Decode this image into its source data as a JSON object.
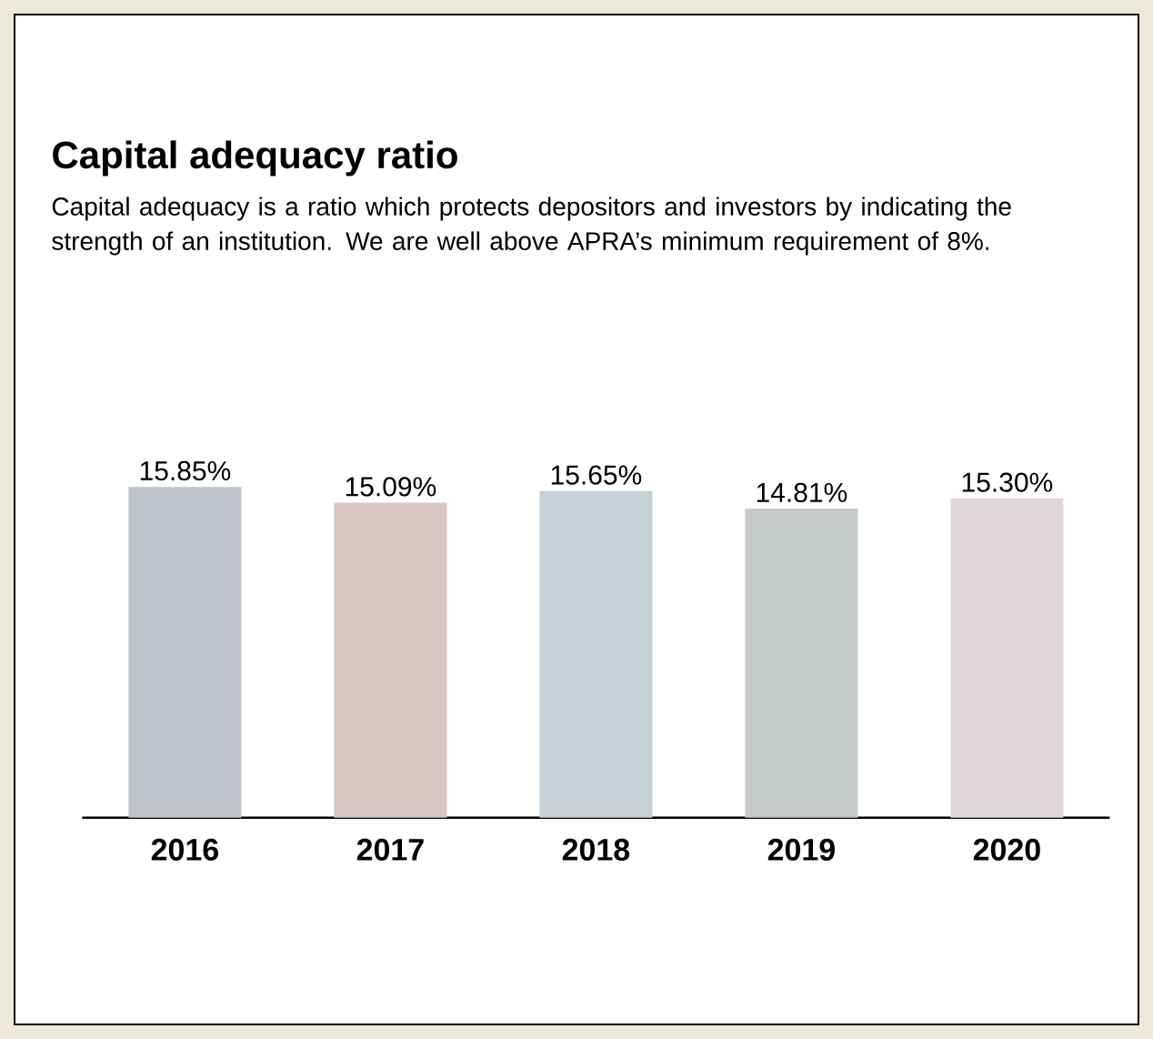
{
  "chart_data": {
    "type": "bar",
    "title": "Capital adequacy ratio",
    "subtitle": "Capital adequacy is a ratio which protects depositors and investors by indicating the strength of an institution. We are well above APRA’s minimum requirement of 8%.",
    "categories": [
      "2016",
      "2017",
      "2018",
      "2019",
      "2020"
    ],
    "values": [
      15.85,
      15.09,
      15.65,
      14.81,
      15.3
    ],
    "value_labels": [
      "15.85%",
      "15.09%",
      "15.65%",
      "14.81%",
      "15.30%"
    ],
    "colors": [
      "#bfc3cc",
      "#d8c8c2",
      "#c5d0d6",
      "#c5cbc7",
      "#e1d6d9"
    ],
    "tick_labels": "x"
  }
}
